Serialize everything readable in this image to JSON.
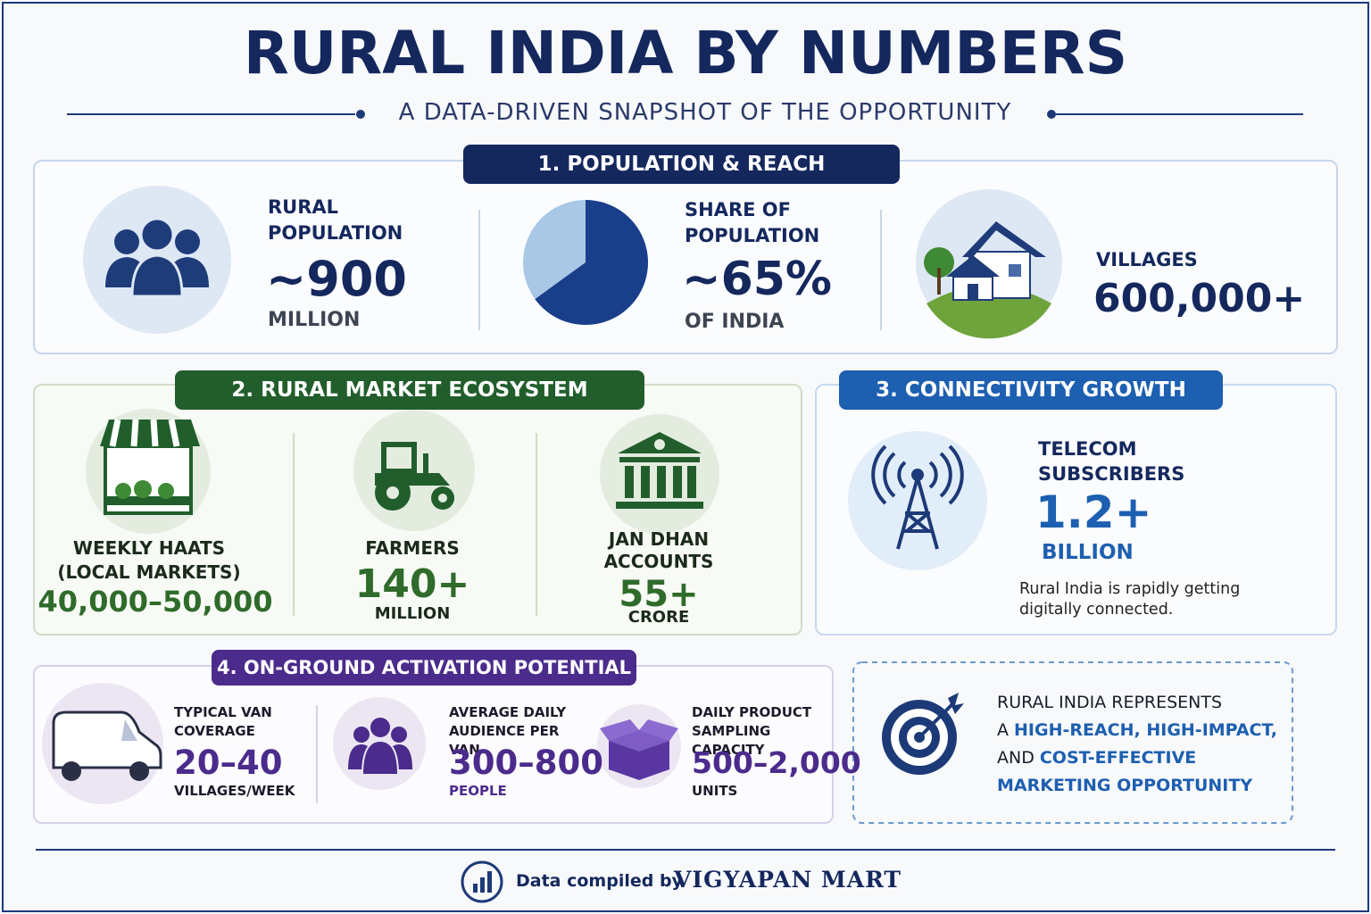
{
  "header": {
    "title": "RURAL INDIA BY NUMBERS",
    "subtitle": "A DATA-DRIVEN SNAPSHOT OF THE OPPORTUNITY"
  },
  "sections": [
    {
      "title": "1. POPULATION & REACH",
      "stats": [
        {
          "label": "RURAL POPULATION",
          "value": "~900",
          "unit": "MILLION"
        },
        {
          "label": "SHARE OF POPULATION",
          "value_label": "~65%",
          "value": 65,
          "unit": "OF INDIA"
        },
        {
          "label": "VILLAGES",
          "value": "600,000+"
        }
      ]
    },
    {
      "title": "2. RURAL MARKET ECOSYSTEM",
      "stats": [
        {
          "label": "WEEKLY HAATS",
          "sublabel": "(LOCAL MARKETS)",
          "value": "40,000–50,000"
        },
        {
          "label": "FARMERS",
          "value": "140+",
          "unit": "MILLION"
        },
        {
          "label": "JAN DHAN ACCOUNTS",
          "value": "55+",
          "unit": "CRORE"
        }
      ]
    },
    {
      "title": "3. CONNECTIVITY GROWTH",
      "stats": [
        {
          "label": "TELECOM SUBSCRIBERS",
          "value": "1.2+",
          "unit": "BILLION"
        }
      ],
      "note": "Rural India is rapidly getting digitally connected."
    },
    {
      "title": "4. ON-GROUND ACTIVATION POTENTIAL",
      "stats": [
        {
          "label": "TYPICAL VAN COVERAGE",
          "value": "20–40",
          "unit": "VILLAGES/WEEK"
        },
        {
          "label": "AVERAGE DAILY AUDIENCE PER VAN",
          "value": "300–800",
          "unit": "PEOPLE"
        },
        {
          "label": "DAILY PRODUCT SAMPLING CAPACITY",
          "value": "500–2,000",
          "unit": "UNITS"
        }
      ]
    }
  ],
  "callout": {
    "lines": [
      {
        "plain": "RURAL INDIA REPRESENTS"
      },
      {
        "plain": "A",
        "highlight": "HIGH-REACH, HIGH-IMPACT,"
      },
      {
        "plain": "AND",
        "highlight": "COST-EFFECTIVE"
      },
      {
        "highlight": "MARKETING OPPORTUNITY"
      }
    ]
  },
  "footer": {
    "credit": "Data compiled by",
    "brand": "VIGYAPAN MART"
  }
}
